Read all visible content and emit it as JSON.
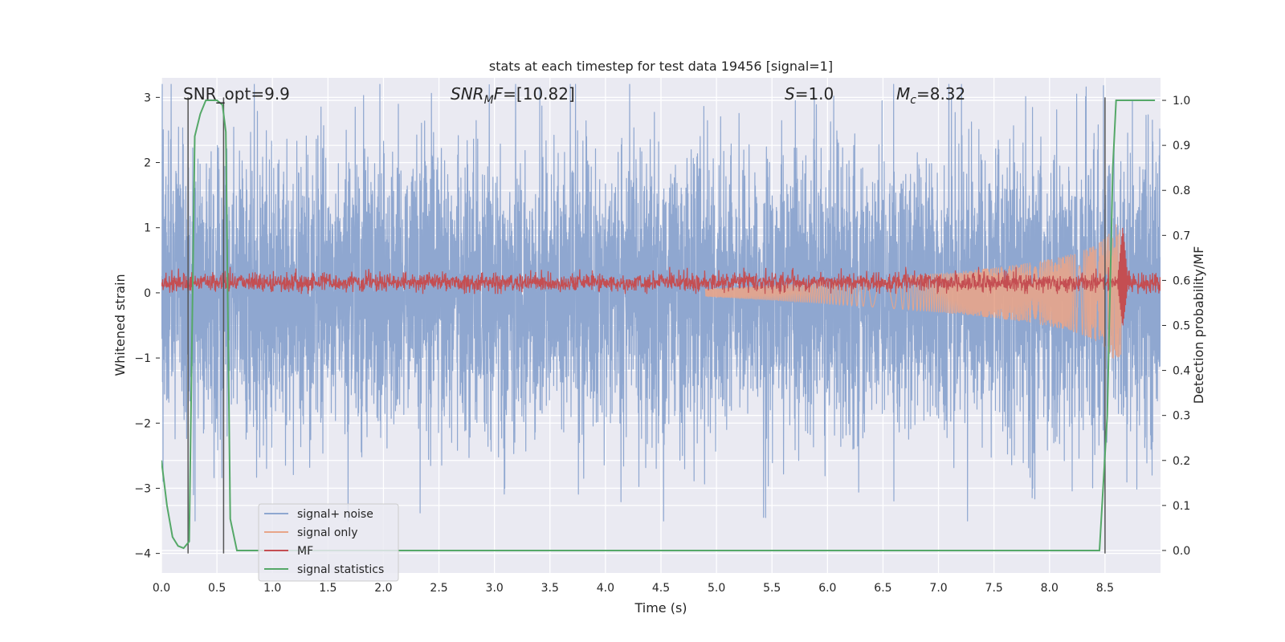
{
  "chart_data": {
    "type": "line",
    "title": "stats at each timestep for test data 19456 [signal=1]",
    "xlabel": "Time (s)",
    "ylabel": "Whitened strain",
    "y2label": "Detection probability/MF",
    "xlim": [
      0.0,
      9.0
    ],
    "ylim": [
      -4.3,
      3.3
    ],
    "y2lim": [
      -0.05,
      1.05
    ],
    "x_ticks": [
      "0.0",
      "0.5",
      "1.0",
      "1.5",
      "2.0",
      "2.5",
      "3.0",
      "3.5",
      "4.0",
      "4.5",
      "5.0",
      "5.5",
      "6.0",
      "6.5",
      "7.0",
      "7.5",
      "8.0",
      "8.5"
    ],
    "y_ticks": [
      "3",
      "2",
      "1",
      "0",
      "−1",
      "−2",
      "−3",
      "−4"
    ],
    "y2_ticks": [
      "1.0",
      "0.9",
      "0.8",
      "0.7",
      "0.6",
      "0.5",
      "0.4",
      "0.3",
      "0.2",
      "0.1",
      "0.0"
    ],
    "grid": true,
    "legend_position": "lower-left",
    "annotations": {
      "snr_opt": {
        "prefix": "SNR_opt=",
        "value": "9.9"
      },
      "snr_mf": {
        "base": "SNR",
        "sub": "M",
        "tail": "F",
        "value": "=[10.82]"
      },
      "s": {
        "symbol": "S",
        "value": "=1.0"
      },
      "mc": {
        "symbol": "M",
        "sub": "c",
        "value": "=8.32"
      }
    },
    "series": [
      {
        "name": "signal+ noise",
        "color": "#8fa7d0",
        "axis": "left",
        "envelope": {
          "typical_amplitude": 1.5,
          "peak_amplitude": 3.2
        }
      },
      {
        "name": "signal only",
        "color": "#e8a589",
        "axis": "left",
        "chirp": {
          "start_x": 4.9,
          "merger_x": 8.65,
          "peak_amplitude": 1.1
        }
      },
      {
        "name": "MF",
        "color": "#c44e52",
        "axis": "right",
        "baseline": 0.595,
        "noise_band": [
          0.57,
          0.63
        ],
        "peak": {
          "x": 8.66,
          "y": 0.72
        }
      },
      {
        "name": "signal statistics",
        "color": "#55a868",
        "axis": "right",
        "points": [
          [
            0.0,
            0.2
          ],
          [
            0.05,
            0.1
          ],
          [
            0.1,
            0.03
          ],
          [
            0.15,
            0.01
          ],
          [
            0.2,
            0.005
          ],
          [
            0.25,
            0.02
          ],
          [
            0.3,
            0.92
          ],
          [
            0.35,
            0.97
          ],
          [
            0.4,
            1.0
          ],
          [
            0.45,
            1.0
          ],
          [
            0.5,
            1.0
          ],
          [
            0.55,
            0.99
          ],
          [
            0.58,
            0.93
          ],
          [
            0.62,
            0.07
          ],
          [
            0.68,
            0.0
          ],
          [
            8.45,
            0.0
          ],
          [
            8.52,
            0.3
          ],
          [
            8.57,
            0.85
          ],
          [
            8.6,
            1.0
          ],
          [
            8.95,
            1.0
          ]
        ]
      }
    ],
    "vertical_markers": {
      "color": "#555555",
      "lines": [
        {
          "x": 0.24,
          "y_from": 3.0,
          "y_to": -4.0
        },
        {
          "x": 0.56,
          "y_from": 3.0,
          "y_to": -4.0
        },
        {
          "x": 8.5,
          "y_from": 3.0,
          "y_to": -4.0
        }
      ]
    }
  }
}
